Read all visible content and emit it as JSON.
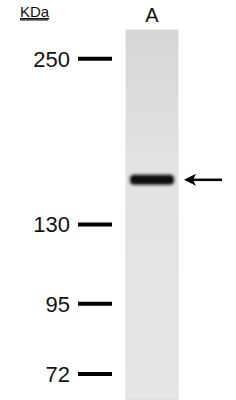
{
  "chart_data": {
    "type": "western_blot",
    "ylabel": "KDa",
    "categories": [
      "A"
    ],
    "values": [
      155
    ],
    "color": "#111111",
    "log": "y",
    "ylim": [
      65,
      280
    ],
    "yticks": [
      250,
      130,
      95,
      72
    ]
  }
}
